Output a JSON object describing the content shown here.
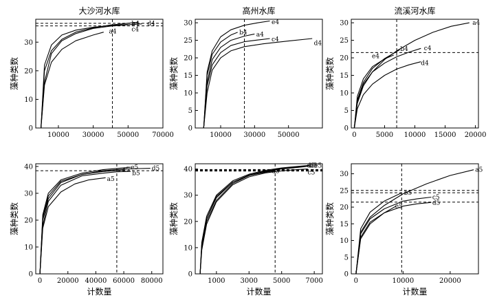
{
  "chart_data": [
    {
      "type": "line",
      "title": "大沙河水库",
      "xlabel": "",
      "ylabel": "藻种类数",
      "xlim": [
        -3000,
        70000
      ],
      "ylim": [
        0,
        38
      ],
      "xticks": [
        10000,
        30000,
        50000,
        70000
      ],
      "yticks": [
        0,
        10,
        20,
        30
      ],
      "vlines": [
        41000
      ],
      "hlines": [
        35.7,
        36.6
      ],
      "series": [
        {
          "name": "b4",
          "label_at": [
            52000,
            36.6
          ],
          "x": [
            0,
            2000,
            6000,
            12000,
            20000,
            30000,
            40000,
            50000,
            56000
          ],
          "y": [
            0,
            20,
            27,
            31,
            33.5,
            35,
            36,
            36.6,
            37
          ]
        },
        {
          "name": "d4",
          "label_at": [
            61000,
            36.6
          ],
          "x": [
            0,
            2000,
            6000,
            12000,
            20000,
            30000,
            40000,
            50000,
            58000
          ],
          "y": [
            0,
            16,
            26,
            30.5,
            33,
            34.8,
            35.6,
            36.1,
            36.4
          ]
        },
        {
          "name": "c4",
          "label_at": [
            52000,
            34.5
          ],
          "x": [
            0,
            2000,
            6000,
            12000,
            20000,
            30000,
            40000,
            50000
          ],
          "y": [
            0,
            22,
            29,
            32.5,
            34.2,
            35.2,
            35.8,
            36.2
          ]
        },
        {
          "name": "a4",
          "label_at": [
            39000,
            33.8
          ],
          "x": [
            0,
            2000,
            6000,
            12000,
            20000,
            30000,
            36000
          ],
          "y": [
            0,
            15,
            23,
            27.5,
            30.5,
            32.5,
            33.5
          ]
        }
      ]
    },
    {
      "type": "line",
      "title": "高州水库",
      "xlabel": "",
      "ylabel": "藻种类数",
      "xlim": [
        -5000,
        70000
      ],
      "ylim": [
        0,
        31
      ],
      "xticks": [
        10000,
        30000,
        50000
      ],
      "yticks": [
        0,
        5,
        10,
        15,
        20,
        25,
        30
      ],
      "vlines": [
        24000
      ],
      "hlines": [],
      "series": [
        {
          "name": "e4",
          "label_at": [
            40000,
            30.2
          ],
          "x": [
            0,
            2000,
            5000,
            10000,
            16000,
            24000,
            32000,
            39000
          ],
          "y": [
            0,
            16,
            22,
            26,
            28,
            29.3,
            30,
            30.5
          ]
        },
        {
          "name": "b4",
          "label_at": [
            21000,
            27.3
          ],
          "x": [
            0,
            2000,
            5000,
            10000,
            16000,
            20000
          ],
          "y": [
            0,
            15,
            21,
            24.5,
            26.5,
            27.3
          ]
        },
        {
          "name": "a4",
          "label_at": [
            31000,
            26.7
          ],
          "x": [
            0,
            2000,
            5000,
            10000,
            16000,
            24000,
            30000
          ],
          "y": [
            0,
            13,
            19.5,
            23,
            25,
            26.2,
            26.8
          ]
        },
        {
          "name": "c4",
          "label_at": [
            40000,
            25.3
          ],
          "x": [
            0,
            2000,
            5000,
            10000,
            16000,
            24000,
            32000,
            39000
          ],
          "y": [
            0,
            12,
            18,
            21.5,
            23.5,
            24.6,
            25.1,
            25.5
          ]
        },
        {
          "name": "d4",
          "label_at": [
            65000,
            24.2
          ],
          "x": [
            0,
            2000,
            5000,
            10000,
            16000,
            24000,
            35000,
            50000,
            64000
          ],
          "y": [
            0,
            10,
            16.5,
            20,
            22,
            23.2,
            24,
            24.8,
            25.5
          ]
        }
      ]
    },
    {
      "type": "line",
      "title": "流溪河水库",
      "xlabel": "",
      "ylabel": "藻种类数",
      "xlim": [
        -500,
        20500
      ],
      "ylim": [
        0,
        31
      ],
      "xticks": [
        0,
        5000,
        10000,
        15000,
        20000
      ],
      "yticks": [
        0,
        5,
        10,
        15,
        20,
        25,
        30
      ],
      "vlines": [
        7000
      ],
      "hlines": [
        21.5
      ],
      "series": [
        {
          "name": "a4",
          "label_at": [
            19500,
            30
          ],
          "x": [
            0,
            500,
            1500,
            3000,
            5000,
            7000,
            10000,
            13000,
            16000,
            19000
          ],
          "y": [
            0,
            7,
            12,
            16,
            19.5,
            22,
            25,
            27.3,
            29,
            30
          ]
        },
        {
          "name": "b4",
          "label_at": [
            7600,
            22.6
          ],
          "x": [
            0,
            500,
            1500,
            3000,
            5000,
            7000,
            7500
          ],
          "y": [
            0,
            8,
            13,
            17,
            19.8,
            21.8,
            22.3
          ]
        },
        {
          "name": "c4",
          "label_at": [
            11500,
            22.8
          ],
          "x": [
            0,
            500,
            1500,
            3000,
            5000,
            7000,
            9000,
            11000
          ],
          "y": [
            0,
            7.5,
            12.5,
            16,
            18.5,
            20.3,
            21.6,
            22.7
          ]
        },
        {
          "name": "e4",
          "label_at": [
            2900,
            20.5
          ],
          "x": [
            0,
            500,
            1500,
            3000,
            5000,
            6500
          ],
          "y": [
            0,
            9,
            14,
            17.5,
            19.7,
            20.8
          ]
        },
        {
          "name": "d4",
          "label_at": [
            11000,
            18.5
          ],
          "x": [
            0,
            500,
            1500,
            3000,
            5000,
            7000,
            9000,
            11000
          ],
          "y": [
            0,
            5.5,
            9.5,
            12.5,
            15,
            16.8,
            18,
            18.9
          ]
        }
      ]
    },
    {
      "type": "line",
      "title": "",
      "xlabel": "计数量",
      "ylabel": "藻种类数",
      "xlim": [
        -3000,
        88000
      ],
      "ylim": [
        0,
        41
      ],
      "xticks": [
        0,
        20000,
        40000,
        60000,
        80000
      ],
      "yticks": [
        0,
        10,
        20,
        30,
        40
      ],
      "vlines": [
        55000
      ],
      "hlines": [
        38.4
      ],
      "series": [
        {
          "name": "e5",
          "label_at": [
            65000,
            39.7
          ],
          "x": [
            0,
            2000,
            6000,
            15000,
            30000,
            45000,
            60000,
            65000
          ],
          "y": [
            0,
            22,
            30,
            35,
            37.5,
            38.8,
            39.5,
            39.7
          ]
        },
        {
          "name": "d5",
          "label_at": [
            80000,
            39.3
          ],
          "x": [
            0,
            2000,
            6000,
            15000,
            30000,
            45000,
            60000,
            70000,
            79000
          ],
          "y": [
            0,
            20,
            28,
            34,
            37,
            38.4,
            39,
            39.2,
            39.3
          ]
        },
        {
          "name": "c5",
          "label_at": [
            59000,
            38.8
          ],
          "x": [
            0,
            2000,
            6000,
            15000,
            30000,
            45000,
            55000,
            61000
          ],
          "y": [
            0,
            21,
            29,
            34.5,
            37,
            38.1,
            38.5,
            38.7
          ]
        },
        {
          "name": "b5",
          "label_at": [
            66000,
            37.6
          ],
          "x": [
            0,
            2000,
            6000,
            15000,
            30000,
            45000,
            55000,
            65000
          ],
          "y": [
            0,
            18,
            27,
            33,
            36.5,
            37.5,
            38,
            38.2
          ]
        },
        {
          "name": "a5",
          "label_at": [
            48000,
            35.3
          ],
          "x": [
            0,
            2000,
            6000,
            15000,
            25000,
            35000,
            47000
          ],
          "y": [
            0,
            17,
            25,
            30.5,
            33.5,
            35,
            35.8
          ]
        }
      ]
    },
    {
      "type": "line",
      "title": "",
      "xlabel": "计数量",
      "ylabel": "藻种类数",
      "xlim": [
        -300,
        7500
      ],
      "ylim": [
        0,
        42
      ],
      "xticks": [
        1000,
        3000,
        5000,
        7000
      ],
      "yticks": [
        0,
        10,
        20,
        30,
        40
      ],
      "vlines": [
        4600
      ],
      "hlines": [
        39.2,
        39.4,
        39.6,
        39.8
      ],
      "series": [
        {
          "name": "b5",
          "label_at": [
            6700,
            41.3
          ],
          "x": [
            0,
            100,
            400,
            1000,
            2000,
            3000,
            4000,
            5000,
            6000,
            6700
          ],
          "y": [
            0,
            12,
            22,
            30,
            35.5,
            38,
            39.5,
            40.4,
            41,
            41.4
          ]
        },
        {
          "name": "e5",
          "label_at": [
            7000,
            41.3
          ],
          "x": [
            0,
            100,
            400,
            1000,
            2000,
            3000,
            4000,
            5000,
            6000,
            6900
          ],
          "y": [
            0,
            11,
            21,
            29,
            35,
            37.7,
            39.2,
            40.2,
            40.8,
            41.2
          ]
        },
        {
          "name": "d5",
          "label_at": [
            6550,
            41.3
          ],
          "x": [
            0,
            100,
            400,
            1000,
            2000,
            3000,
            4000,
            5000,
            6000,
            6550
          ],
          "y": [
            0,
            10,
            20,
            28,
            34.5,
            37.5,
            39,
            40,
            40.6,
            41
          ]
        },
        {
          "name": "a5",
          "label_at": [
            4400,
            39.3
          ],
          "x": [
            0,
            100,
            400,
            1000,
            2000,
            3000,
            4000,
            4600
          ],
          "y": [
            0,
            11,
            21,
            29.5,
            35,
            37.5,
            38.8,
            39.3
          ]
        },
        {
          "name": "c5",
          "label_at": [
            6600,
            38.7
          ],
          "x": [
            0,
            100,
            400,
            1000,
            2000,
            3000,
            4000,
            5000,
            6000,
            6600
          ],
          "y": [
            0,
            9,
            19,
            27.5,
            34,
            37,
            38.5,
            39.3,
            39.8,
            40
          ]
        }
      ]
    },
    {
      "type": "line",
      "title": "",
      "xlabel": "计数量",
      "ylabel": "藻种类数",
      "xlim": [
        -1000,
        26000
      ],
      "ylim": [
        0,
        33
      ],
      "xticks": [
        0,
        10000,
        20000
      ],
      "yticks": [
        0,
        5,
        10,
        15,
        20,
        25,
        30
      ],
      "vlines": [
        9700
      ],
      "hlines": [
        21.5,
        24.3,
        25
      ],
      "series": [
        {
          "name": "a5",
          "label_at": [
            25300,
            31.2
          ],
          "x": [
            0,
            1000,
            3000,
            6000,
            10000,
            15000,
            20000,
            25000
          ],
          "y": [
            0,
            12.5,
            17,
            20.5,
            24,
            27,
            29.5,
            31.2
          ]
        },
        {
          "name": "b5",
          "label_at": [
            10200,
            24.3
          ],
          "x": [
            0,
            1000,
            3000,
            6000,
            9700
          ],
          "y": [
            0,
            13.5,
            18.5,
            21.8,
            24.3
          ]
        },
        {
          "name": "c5",
          "label_at": [
            16200,
            23
          ],
          "x": [
            0,
            1000,
            3000,
            6000,
            10000,
            13000,
            16000
          ],
          "y": [
            0,
            12,
            16.5,
            19.5,
            21.8,
            22.5,
            23
          ]
        },
        {
          "name": "d5",
          "label_at": [
            16200,
            21.3
          ],
          "x": [
            0,
            1000,
            3000,
            6000,
            10000,
            13000,
            16000
          ],
          "y": [
            0,
            11,
            15.5,
            18.3,
            20.3,
            21,
            21.4
          ]
        },
        {
          "name": "e5",
          "label_at": [
            8300,
            20.3
          ],
          "x": [
            0,
            1000,
            3000,
            6000,
            8500
          ],
          "y": [
            0,
            10.5,
            15,
            18.3,
            20.3
          ]
        }
      ]
    }
  ]
}
